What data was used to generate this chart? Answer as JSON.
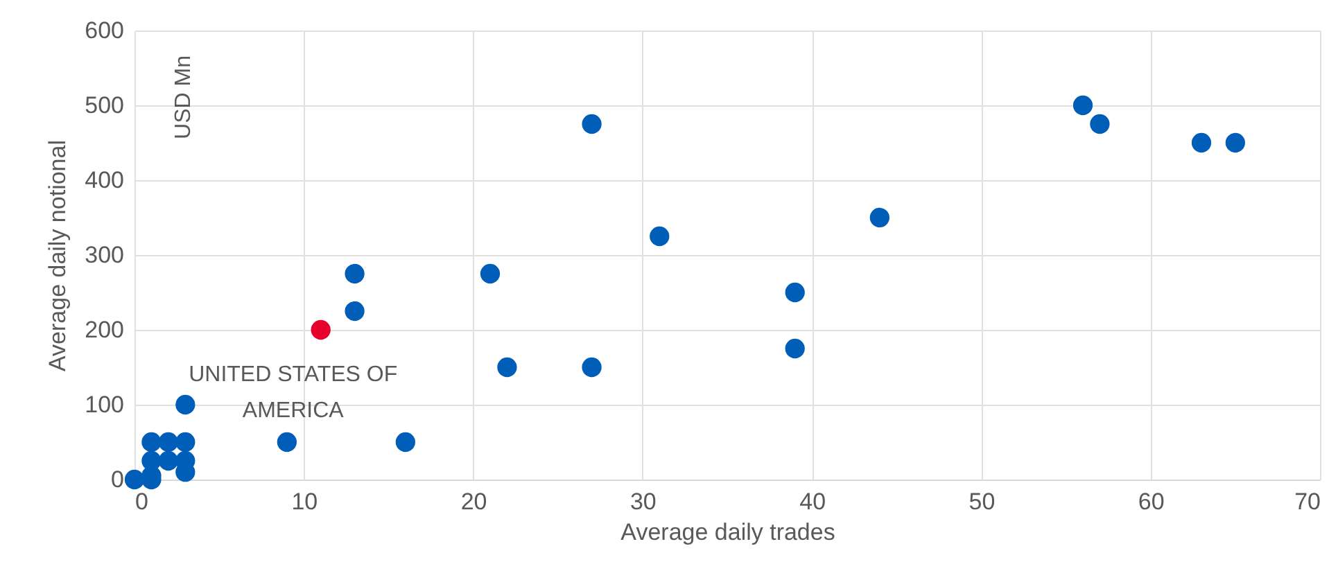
{
  "chart_data": {
    "type": "scatter",
    "xlabel": "Average daily trades",
    "ylabel": "Average daily notional",
    "annotations": [
      "USD Mn",
      {
        "text": "UNITED STATES OF AMERICA",
        "x": 11,
        "y": 200
      }
    ],
    "series": [
      {
        "color": "#005eb8",
        "x": [
          0,
          1,
          1,
          1,
          1,
          2,
          2,
          3,
          3,
          3,
          3,
          9,
          16,
          13,
          13,
          21,
          22,
          27,
          27,
          31,
          39,
          39,
          44,
          56,
          57,
          63,
          65
        ],
        "values": [
          0,
          0,
          5,
          25,
          50,
          25,
          50,
          10,
          25,
          50,
          100,
          50,
          50,
          225,
          275,
          275,
          150,
          150,
          475,
          325,
          250,
          175,
          350,
          500,
          475,
          450,
          450
        ]
      },
      {
        "color": "#e8002d",
        "x": [
          11
        ],
        "values": [
          200
        ]
      }
    ],
    "xlim": [
      0,
      70
    ],
    "xticks": [
      0,
      10,
      20,
      30,
      40,
      50,
      60,
      70
    ],
    "ylim": [
      0,
      600
    ],
    "yticks": [
      0,
      100,
      200,
      300,
      400,
      500,
      600
    ],
    "grid": true,
    "marker": "circle"
  }
}
